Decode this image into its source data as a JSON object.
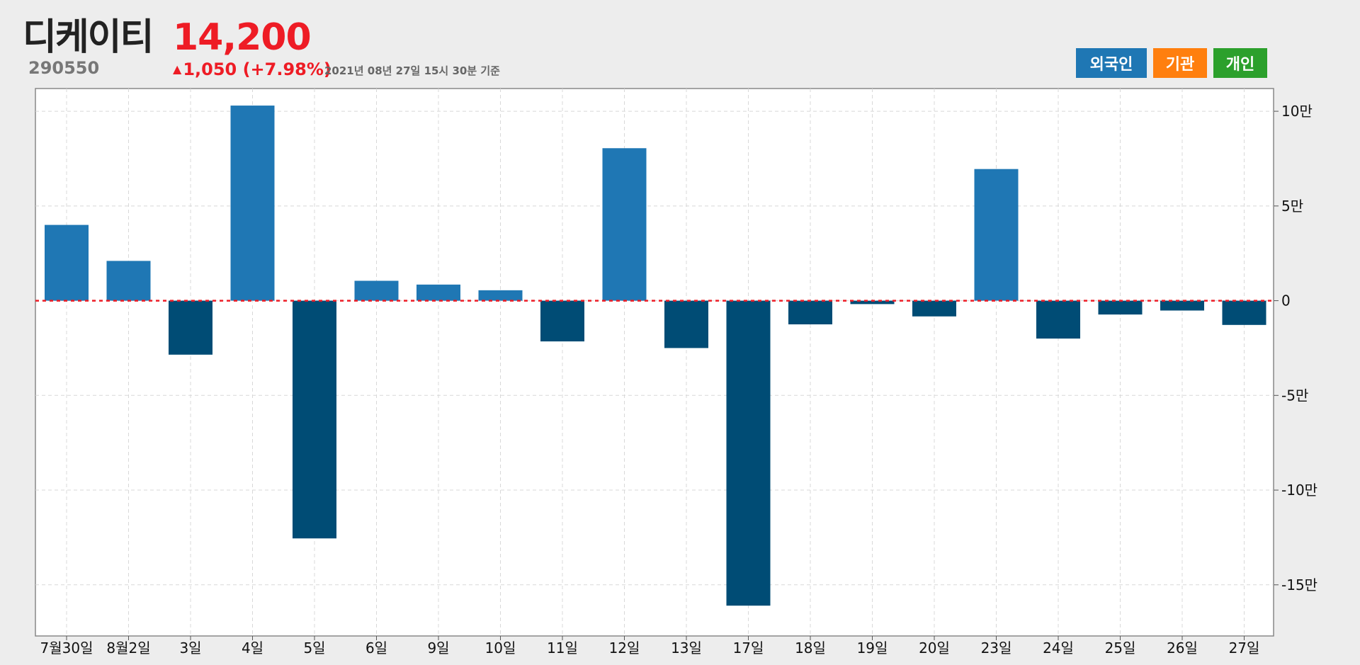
{
  "header": {
    "stock_name": "디케이티",
    "stock_code": "290550",
    "price": "14,200",
    "change_arrow": "▲",
    "change_text": "1,050 (+7.98%)",
    "timestamp": "2021년 08년 27일 15시 30분 기준"
  },
  "buttons": {
    "foreign": "외국인",
    "institution": "기관",
    "individual": "개인"
  },
  "colors": {
    "positive_bar": "#1f77b4",
    "negative_bar": "#004c75",
    "zero_line": "#ee1c25",
    "up_price": "#ee1c25"
  },
  "chart_data": {
    "type": "bar",
    "categories": [
      "7월30일",
      "8월2일",
      "3일",
      "4일",
      "5일",
      "6일",
      "9일",
      "10일",
      "11일",
      "12일",
      "13일",
      "17일",
      "18일",
      "19일",
      "20일",
      "23일",
      "24일",
      "25일",
      "26일",
      "27일"
    ],
    "series": [
      {
        "values": [
          40000,
          21000,
          -28500,
          103000,
          -125500,
          10500,
          8500,
          5500,
          -21500,
          80500,
          -25000,
          -161000,
          -12500,
          -1800,
          -8300,
          69500,
          -20000,
          -7300,
          -5200,
          -12800
        ]
      }
    ],
    "ylim": [
      -177000,
      112000
    ],
    "y_ticks": [
      100000,
      50000,
      0,
      -50000,
      -100000,
      -150000
    ],
    "y_tick_labels": [
      "10만",
      "5만",
      "0",
      "-5만",
      "-10만",
      "-15만"
    ],
    "grid": true,
    "zero_line": true,
    "y_axis_side": "right"
  }
}
